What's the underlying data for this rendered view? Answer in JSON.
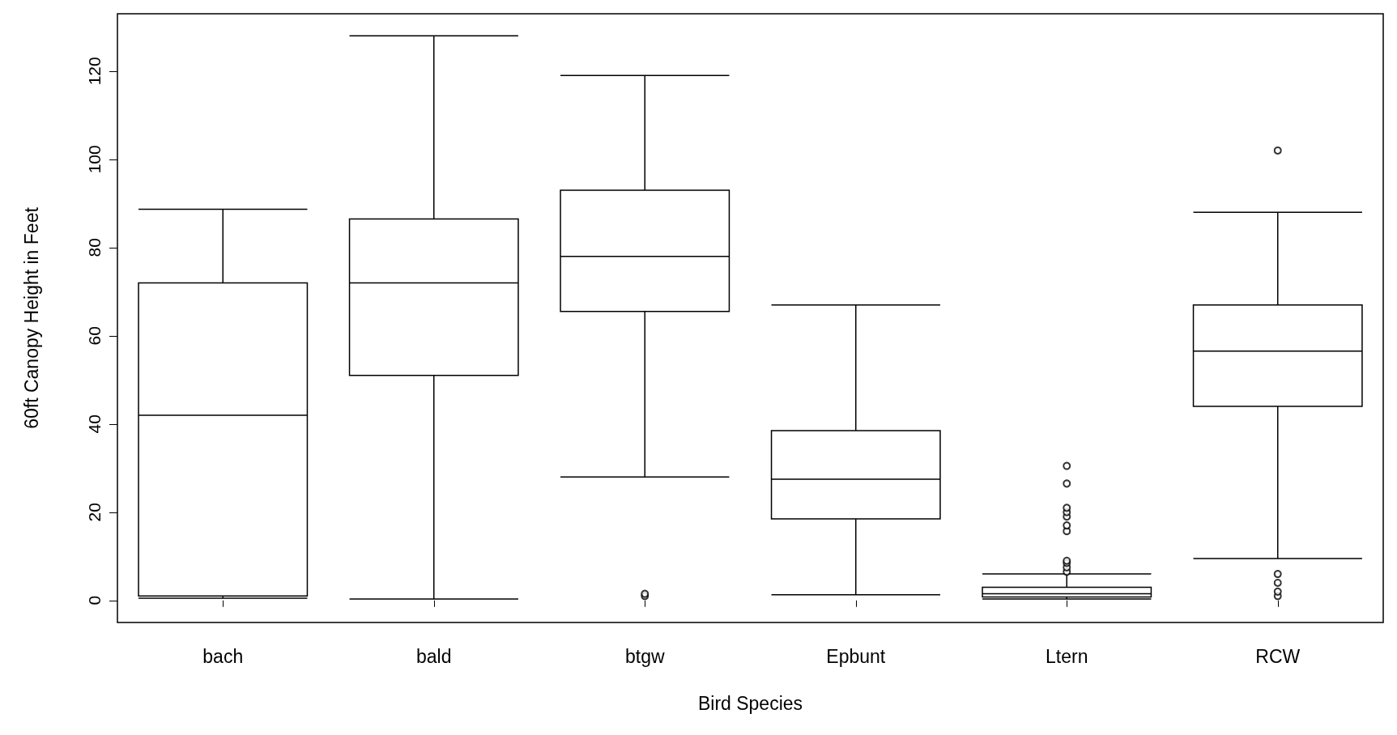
{
  "chart_data": {
    "type": "box",
    "xlabel": "Bird Species",
    "ylabel": "60ft Canopy Height in Feet",
    "categories": [
      "bach",
      "bald",
      "btgw",
      "Epbunt",
      "Ltern",
      "RCW"
    ],
    "boxes": [
      {
        "low": 0.5,
        "q1": 1,
        "median": 42,
        "q3": 72,
        "high": 88.7
      },
      {
        "low": 0.3,
        "q1": 51,
        "median": 72,
        "q3": 86.5,
        "high": 128
      },
      {
        "low": 28,
        "q1": 65.5,
        "median": 78,
        "q3": 93,
        "high": 119,
        "outliers": [
          1,
          1.5
        ]
      },
      {
        "low": 1.3,
        "q1": 18.5,
        "median": 27.5,
        "q3": 38.5,
        "high": 67
      },
      {
        "low": 0.3,
        "q1": 0.8,
        "median": 1.5,
        "q3": 3,
        "high": 6,
        "outliers": [
          6.5,
          7.5,
          8.5,
          9,
          15.7,
          17,
          19,
          20,
          21,
          26.5,
          30.5
        ]
      },
      {
        "low": 9.5,
        "q1": 44,
        "median": 56.5,
        "q3": 67,
        "high": 88,
        "outliers": [
          1,
          2,
          4,
          6,
          102
        ]
      }
    ],
    "color": "#000000",
    "ylim": [
      -5,
      133
    ],
    "yticks": [
      0,
      20,
      40,
      60,
      80,
      100,
      120
    ],
    "grid": false
  }
}
